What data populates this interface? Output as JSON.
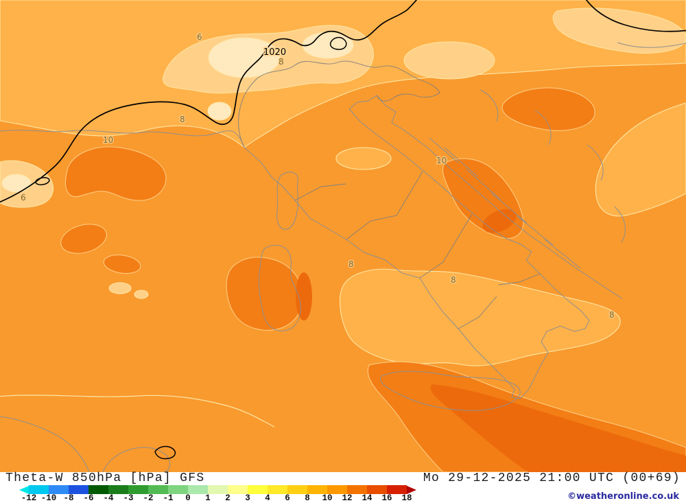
{
  "map": {
    "isobar_label": "1020",
    "contour_labels": [
      {
        "text": "6"
      },
      {
        "text": "8"
      },
      {
        "text": "8"
      },
      {
        "text": "10"
      },
      {
        "text": "6"
      },
      {
        "text": "10"
      },
      {
        "text": "8"
      },
      {
        "text": "8"
      },
      {
        "text": "8"
      }
    ],
    "palette": {
      "background": "#f99a2e",
      "band_light": "#ffb24a",
      "pale": "#ffd088",
      "palest": "#ffe9be",
      "dark_patch": "#f37e15",
      "darker_core": "#ec6a0c",
      "contour_line": "#ffe7a6",
      "coastline": "#8f8f8f",
      "isobar": "#000000"
    }
  },
  "footer": {
    "title": "Theta-W 850hPa [hPa] GFS",
    "datetime": "Mo 29-12-2025 21:00 UTC (00+69)",
    "copyright": "©weatheronline.co.uk"
  },
  "scale": {
    "ticks": [
      "-12",
      "-10",
      "-8",
      "-6",
      "-4",
      "-3",
      "-2",
      "-1",
      "0",
      "1",
      "2",
      "3",
      "4",
      "6",
      "8",
      "10",
      "12",
      "14",
      "16",
      "18"
    ],
    "segment_colors": [
      "#00c8ee",
      "#2e8bf5",
      "#1d52e0",
      "#015a01",
      "#1b7c1b",
      "#2f9c2f",
      "#53bb53",
      "#7fd47f",
      "#abe8ab",
      "#e2f8b0",
      "#ffff8c",
      "#ffff3c",
      "#ffe928",
      "#ffcf14",
      "#ffb405",
      "#fd9800",
      "#f47300",
      "#e84d00",
      "#d62000"
    ],
    "arrow_left_color": "#00e6e6",
    "arrow_right_color": "#b00000"
  }
}
